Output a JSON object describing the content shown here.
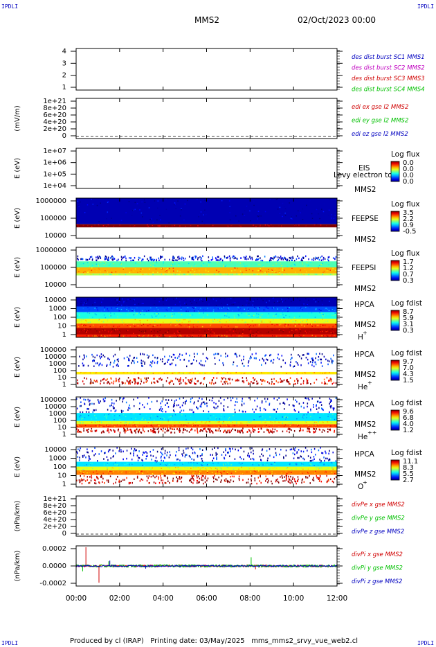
{
  "header": {
    "logo": "IPDLI",
    "spacecraft": "MMS2",
    "datetime": "02/Oct/2023 00:00"
  },
  "footer": {
    "text": "Produced by cl (IRAP)   Printing date: 03/May/2025   mms_mms2_srvy_vue_web2.cl"
  },
  "x_axis": {
    "ticks": [
      "00:00",
      "02:00",
      "04:00",
      "06:00",
      "08:00",
      "10:00",
      "12:00"
    ],
    "range_hours": [
      0,
      12
    ]
  },
  "colors": {
    "mms1": "#0000c0",
    "mms2": "#c000c0",
    "mms3": "#d00000",
    "mms4": "#00c000",
    "x": "#d00000",
    "y": "#00c000",
    "z": "#0000c0"
  },
  "panels": [
    {
      "id": "burst",
      "ylabel": "",
      "yticks": [
        "4",
        "3",
        "2",
        "1"
      ],
      "legend": [
        {
          "text": "des dist burst SC1 MMS1",
          "color": "#0000c0"
        },
        {
          "text": "des dist burst SC2 MMS2",
          "color": "#c000c0"
        },
        {
          "text": "des dist burst SC3 MMS3",
          "color": "#d00000"
        },
        {
          "text": "des dist burst SC4 MMS4",
          "color": "#00c000"
        }
      ]
    },
    {
      "id": "edi",
      "ylabel": "(mV/m)",
      "yticks": [
        "1e+21",
        "8e+20",
        "6e+20",
        "4e+20",
        "2e+20",
        "0"
      ],
      "legend": [
        {
          "text": "edi ex gse l2 MMS2",
          "color": "#d00000"
        },
        {
          "text": "edi ey gse l2 MMS2",
          "color": "#00c000"
        },
        {
          "text": "edi ez gse l2 MMS2",
          "color": "#0000c0"
        }
      ]
    },
    {
      "id": "eis",
      "ylabel": "E (eV)",
      "yticks": [
        "1e+07",
        "1e+06",
        "1e+05",
        "1e+04"
      ],
      "instrument": "EIS",
      "overlay": "Levy electron to",
      "spacecraft": "MMS2",
      "colorbar": {
        "label": "Log flux",
        "ticks": [
          "0.0",
          "0.0",
          "0.0",
          "0.0"
        ]
      }
    },
    {
      "id": "feepse",
      "ylabel": "E (eV)",
      "yticks": [
        "1000000",
        "100000",
        "10000"
      ],
      "instrument": "FEEPSE",
      "spacecraft": "MMS2",
      "colorbar": {
        "label": "Log flux",
        "ticks": [
          "3.5",
          "2.2",
          "0.9",
          "-0.5"
        ]
      }
    },
    {
      "id": "feepsi",
      "ylabel": "E (eV)",
      "yticks": [
        "1000000",
        "100000",
        "10000"
      ],
      "instrument": "FEEPSI",
      "spacecraft": "MMS2",
      "colorbar": {
        "label": "Log flux",
        "ticks": [
          "1.7",
          "1.2",
          "0.7",
          "0.3"
        ]
      }
    },
    {
      "id": "hpca-h",
      "ylabel": "E (eV)",
      "yticks": [
        "10000",
        "1000",
        "100",
        "10",
        "1"
      ],
      "instrument": "HPCA",
      "spacecraft": "MMS2",
      "species": "H",
      "charge": "+",
      "colorbar": {
        "label": "Log fdist",
        "ticks": [
          "8.7",
          "5.9",
          "3.1",
          "0.3"
        ]
      }
    },
    {
      "id": "hpca-he",
      "ylabel": "E (eV)",
      "yticks": [
        "100000",
        "10000",
        "1000",
        "100",
        "10",
        "1"
      ],
      "instrument": "HPCA",
      "spacecraft": "MMS2",
      "species": "He",
      "charge": "+",
      "colorbar": {
        "label": "Log fdist",
        "ticks": [
          "9.7",
          "7.0",
          "4.3",
          "1.5"
        ]
      }
    },
    {
      "id": "hpca-he2",
      "ylabel": "E (eV)",
      "yticks": [
        "100000",
        "10000",
        "1000",
        "100",
        "10",
        "1"
      ],
      "instrument": "HPCA",
      "spacecraft": "MMS2",
      "species": "He",
      "charge": "++",
      "colorbar": {
        "label": "Log fdist",
        "ticks": [
          "9.6",
          "6.8",
          "4.0",
          "1.2"
        ]
      }
    },
    {
      "id": "hpca-o",
      "ylabel": "E (eV)",
      "yticks": [
        "10000",
        "1000",
        "100",
        "10",
        "1"
      ],
      "instrument": "HPCA",
      "spacecraft": "MMS2",
      "species": "O",
      "charge": "+",
      "colorbar": {
        "label": "Log fdist",
        "ticks": [
          "11.1",
          "8.3",
          "5.5",
          "2.7"
        ]
      }
    },
    {
      "id": "divpe",
      "ylabel": "(nPa/km)",
      "yticks": [
        "1e+21",
        "8e+20",
        "6e+20",
        "4e+20",
        "2e+20",
        "0"
      ],
      "legend": [
        {
          "text": "divPe x gse MMS2",
          "color": "#d00000"
        },
        {
          "text": "divPe y gse MMS2",
          "color": "#00c000"
        },
        {
          "text": "divPe z gse MMS2",
          "color": "#0000c0"
        }
      ]
    },
    {
      "id": "divpi",
      "ylabel": "(nPa/km)",
      "yticks": [
        "0.0002",
        "0.0000",
        "-0.0002"
      ],
      "legend": [
        {
          "text": "divPi x gse MMS2",
          "color": "#d00000"
        },
        {
          "text": "divPi y gse MMS2",
          "color": "#00c000"
        },
        {
          "text": "divPi z gse MMS2",
          "color": "#0000c0"
        }
      ]
    }
  ],
  "chart_data": [
    {
      "type": "line",
      "panel": "burst",
      "ylim": [
        0.5,
        4.5
      ],
      "series": []
    },
    {
      "type": "line",
      "panel": "edi",
      "ylim": [
        0,
        1e+21
      ],
      "series": [
        {
          "name": "edi ex gse l2 MMS2",
          "values": []
        },
        {
          "name": "edi ey gse l2 MMS2",
          "values": []
        },
        {
          "name": "edi ez gse l2 MMS2",
          "values": []
        }
      ]
    },
    {
      "type": "heatmap",
      "panel": "eis",
      "ylim": [
        10000.0,
        10000000.0
      ],
      "scale": "log",
      "bands": []
    },
    {
      "type": "heatmap",
      "panel": "feepse",
      "ylim": [
        10000.0,
        1000000.0
      ],
      "scale": "log",
      "bands": [
        {
          "emin": 50000,
          "emax": 1000000,
          "level": 0.05
        },
        {
          "emin": 35000,
          "emax": 50000,
          "level": 1.0
        }
      ]
    },
    {
      "type": "heatmap",
      "panel": "feepsi",
      "ylim": [
        10000.0,
        1000000.0
      ],
      "scale": "log",
      "bands": [
        {
          "emin": 200000,
          "emax": 400000,
          "level": 0.1,
          "sparse": true
        },
        {
          "emin": 100000,
          "emax": 200000,
          "level": 0.45
        },
        {
          "emin": 50000,
          "emax": 100000,
          "level": 0.7
        },
        {
          "emin": 40000,
          "emax": 50000,
          "level": 0.55
        }
      ]
    },
    {
      "type": "heatmap",
      "panel": "hpca-h",
      "ylim": [
        1,
        20000
      ],
      "scale": "log",
      "bands": [
        {
          "emin": 2000,
          "emax": 20000,
          "level": 0.05
        },
        {
          "emin": 500,
          "emax": 2000,
          "level": 0.2
        },
        {
          "emin": 100,
          "emax": 500,
          "level": 0.4
        },
        {
          "emin": 30,
          "emax": 100,
          "level": 0.6
        },
        {
          "emin": 10,
          "emax": 30,
          "level": 0.8
        },
        {
          "emin": 2,
          "emax": 10,
          "level": 0.95
        },
        {
          "emin": 1,
          "emax": 2,
          "level": 0.85
        }
      ]
    },
    {
      "type": "heatmap",
      "panel": "hpca-he",
      "ylim": [
        1,
        100000
      ],
      "scale": "log",
      "bands": [
        {
          "emin": 300,
          "emax": 20000,
          "level": 0.1,
          "sparse": true
        },
        {
          "emin": 40,
          "emax": 80,
          "level": 0.65
        },
        {
          "emin": 2,
          "emax": 20,
          "level": 0.9,
          "sparse": true
        }
      ]
    },
    {
      "type": "heatmap",
      "panel": "hpca-he2",
      "ylim": [
        1,
        100000
      ],
      "scale": "log",
      "bands": [
        {
          "emin": 1000,
          "emax": 100000,
          "level": 0.1,
          "sparse": true
        },
        {
          "emin": 100,
          "emax": 1000,
          "level": 0.35
        },
        {
          "emin": 40,
          "emax": 100,
          "level": 0.6
        },
        {
          "emin": 15,
          "emax": 40,
          "level": 0.8
        },
        {
          "emin": 3,
          "emax": 15,
          "level": 0.95,
          "sparse": true
        }
      ]
    },
    {
      "type": "heatmap",
      "panel": "hpca-o",
      "ylim": [
        1,
        20000
      ],
      "scale": "log",
      "bands": [
        {
          "emin": 500,
          "emax": 20000,
          "level": 0.1,
          "sparse": true
        },
        {
          "emin": 150,
          "emax": 500,
          "level": 0.35
        },
        {
          "emin": 60,
          "emax": 150,
          "level": 0.6
        },
        {
          "emin": 20,
          "emax": 60,
          "level": 0.75
        },
        {
          "emin": 2,
          "emax": 20,
          "level": 0.95,
          "sparse": true
        }
      ]
    },
    {
      "type": "line",
      "panel": "divpe",
      "ylim": [
        0,
        1e+21
      ],
      "series": [
        {
          "name": "divPe x gse MMS2",
          "values": []
        },
        {
          "name": "divPe y gse MMS2",
          "values": []
        },
        {
          "name": "divPe z gse MMS2",
          "values": []
        }
      ]
    },
    {
      "type": "line",
      "panel": "divpi",
      "ylim": [
        -0.0003,
        0.0003
      ],
      "series": [
        {
          "name": "divPi x gse MMS2",
          "noise": 1.5e-05,
          "spikes": [
            {
              "t": 0.45,
              "y": 0.00028
            },
            {
              "t": 1.05,
              "y": -0.00025
            },
            {
              "t": 8.25,
              "y": -5e-05
            }
          ]
        },
        {
          "name": "divPi y gse MMS2",
          "noise": 1.8e-05,
          "spikes": [
            {
              "t": 0.3,
              "y": -8e-05
            },
            {
              "t": 8.05,
              "y": 0.00013
            },
            {
              "t": 1.5,
              "y": 7e-05
            }
          ]
        },
        {
          "name": "divPi z gse MMS2",
          "noise": 1.2e-05,
          "spikes": [
            {
              "t": 1.55,
              "y": 8e-05
            },
            {
              "t": 3.2,
              "y": -4e-05
            }
          ]
        }
      ]
    }
  ]
}
